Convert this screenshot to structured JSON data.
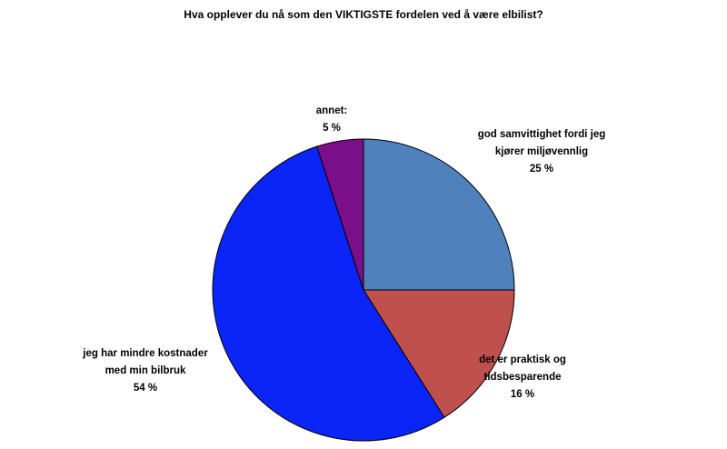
{
  "chart_data": {
    "type": "pie",
    "title": "Hva opplever du nå som den VIKTIGSTE fordelen ved å være elbilist?",
    "slices": [
      {
        "label_lines": [
          "god samvittighet fordi jeg",
          "kjører miljøvennlig"
        ],
        "value": 25,
        "value_label": "25 %",
        "color": "#4f81bd"
      },
      {
        "label_lines": [
          "det er praktisk og",
          "tidsbesparende"
        ],
        "value": 16,
        "value_label": "16 %",
        "color": "#c0504d"
      },
      {
        "label_lines": [
          "jeg har mindre kostnader",
          "med min bilbruk"
        ],
        "value": 54,
        "value_label": "54 %",
        "color": "#0a25f5"
      },
      {
        "label_lines": [
          "annet:"
        ],
        "value": 5,
        "value_label": "5 %",
        "color": "#7b0f8a"
      }
    ],
    "start_angle_deg": 0,
    "direction": "clockwise",
    "legend": "none"
  }
}
